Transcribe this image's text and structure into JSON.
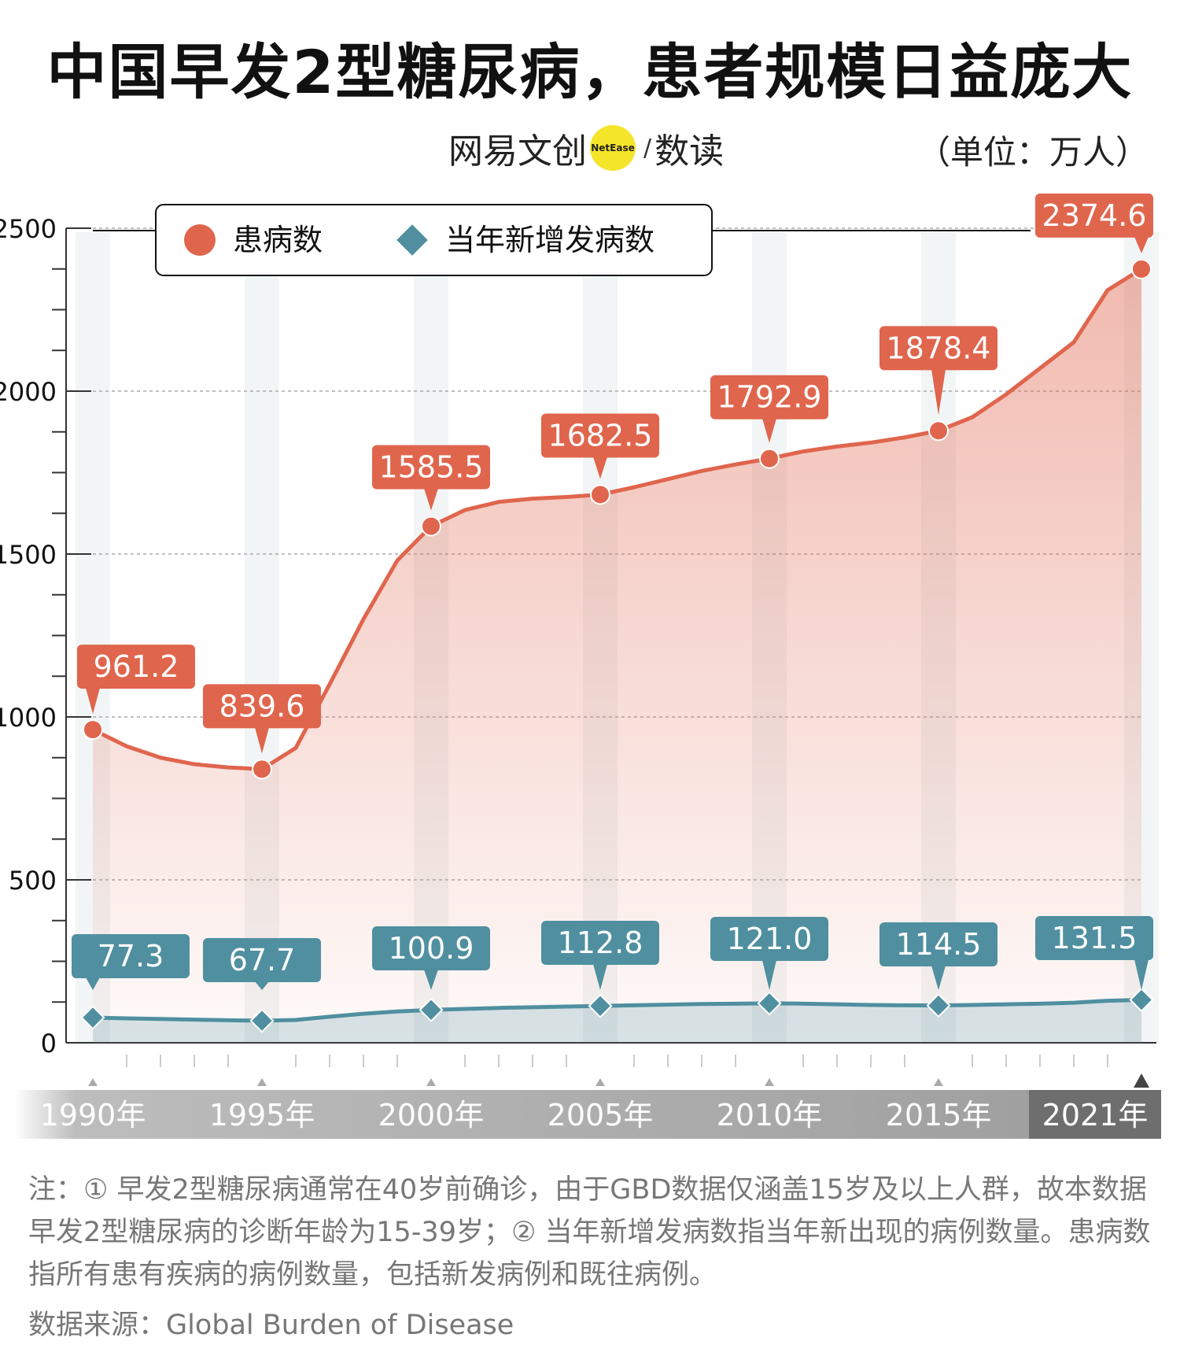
{
  "title": "中国早发2型糖尿病，患者规模日益庞大",
  "brand": {
    "cn": "网易文创",
    "badge": "NetEase",
    "slash": "/",
    "du": "数读"
  },
  "unit": "（单位：万人）",
  "colors": {
    "prevalence": "#e0654d",
    "incidence": "#4f8fa0",
    "axis": "#333333",
    "band": "#f2f5f5"
  },
  "chart_data": {
    "type": "line",
    "title": "中国早发2型糖尿病，患者规模日益庞大",
    "unit": "（单位：万人）",
    "ylim": [
      0,
      2500
    ],
    "yticks": [
      0,
      500,
      1000,
      1500,
      2000,
      2500
    ],
    "ytick_labels": [
      "0",
      "500",
      "1000",
      "1500",
      "2000",
      "2500"
    ],
    "xlim": [
      1990,
      2021
    ],
    "x_tick_years": [
      1990,
      1995,
      2000,
      2005,
      2010,
      2015,
      2021
    ],
    "x_tick_labels": [
      "1990年",
      "1995年",
      "2000年",
      "2005年",
      "2010年",
      "2015年",
      "2021年"
    ],
    "legend": {
      "position": "top-left"
    },
    "grid": true,
    "series": [
      {
        "name": "患病数",
        "marker": "circle",
        "x": [
          1990,
          1991,
          1992,
          1993,
          1994,
          1995,
          1996,
          1997,
          1998,
          1999,
          2000,
          2001,
          2002,
          2003,
          2004,
          2005,
          2006,
          2007,
          2008,
          2009,
          2010,
          2011,
          2012,
          2013,
          2014,
          2015,
          2016,
          2017,
          2018,
          2019,
          2020,
          2021
        ],
        "values": [
          961.2,
          910,
          875,
          855,
          845,
          839.6,
          905,
          1100,
          1300,
          1480,
          1585.5,
          1635,
          1660,
          1670,
          1675,
          1682.5,
          1705,
          1730,
          1755,
          1775,
          1792.9,
          1815,
          1830,
          1842,
          1858,
          1878.4,
          1920,
          1990,
          2070,
          2150,
          2310,
          2374.6
        ],
        "labeled_x": [
          1990,
          1995,
          2000,
          2005,
          2010,
          2015,
          2021
        ],
        "labels": [
          "961.2",
          "839.6",
          "1585.5",
          "1682.5",
          "1792.9",
          "1878.4",
          "2374.6"
        ]
      },
      {
        "name": "当年新增发病数",
        "marker": "diamond",
        "x": [
          1990,
          1991,
          1992,
          1993,
          1994,
          1995,
          1996,
          1997,
          1998,
          1999,
          2000,
          2001,
          2002,
          2003,
          2004,
          2005,
          2006,
          2007,
          2008,
          2009,
          2010,
          2011,
          2012,
          2013,
          2014,
          2015,
          2016,
          2017,
          2018,
          2019,
          2020,
          2021
        ],
        "values": [
          77.3,
          75,
          73,
          71,
          69,
          67.7,
          70,
          80,
          89,
          96,
          100.9,
          104,
          107,
          109,
          111,
          112.8,
          115,
          117,
          119,
          120,
          121.0,
          120,
          118,
          116,
          115,
          114.5,
          116,
          118,
          120,
          123,
          129,
          131.5
        ],
        "labeled_x": [
          1990,
          1995,
          2000,
          2005,
          2010,
          2015,
          2021
        ],
        "labels": [
          "77.3",
          "67.7",
          "100.9",
          "112.8",
          "121.0",
          "114.5",
          "131.5"
        ]
      }
    ]
  },
  "note": "注：① 早发2型糖尿病通常在40岁前确诊，由于GBD数据仅涵盖15岁及以上人群，故本数据早发2型糖尿病的诊断年龄为15-39岁；② 当年新增发病数指当年新出现的病例数量。患病数指所有患有疾病的病例数量，包括新发病例和既往病例。",
  "source": "数据来源：Global Burden of Disease"
}
